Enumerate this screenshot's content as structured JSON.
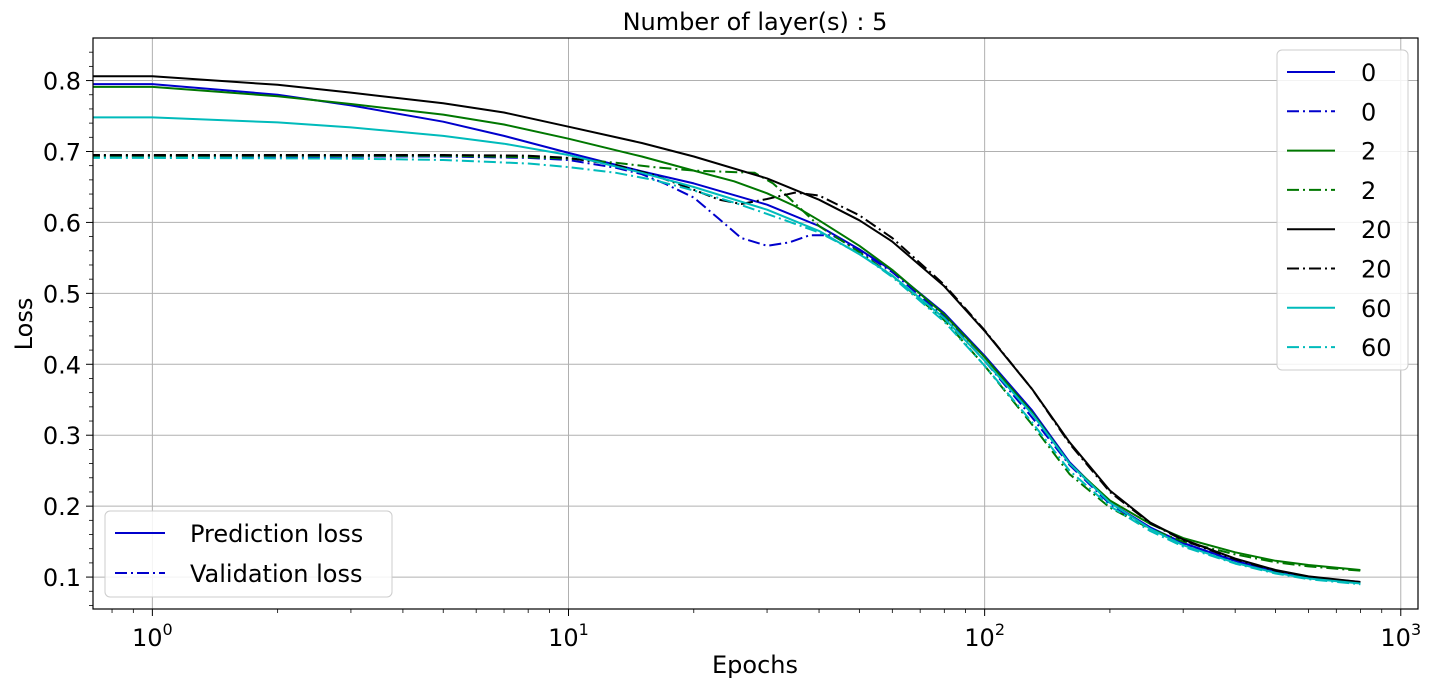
{
  "chart_data": {
    "type": "line",
    "title": "Number of layer(s) : 5",
    "xlabel": "Epochs",
    "ylabel": "Loss",
    "xscale": "log",
    "xlim": [
      0.72,
      1100
    ],
    "ylim": [
      0.055,
      0.86
    ],
    "grid": true,
    "x_ticks": [
      1,
      10,
      100,
      1000
    ],
    "x_tick_labels": [
      {
        "base": "10",
        "exp": "0"
      },
      {
        "base": "10",
        "exp": "1"
      },
      {
        "base": "10",
        "exp": "2"
      },
      {
        "base": "10",
        "exp": "3"
      }
    ],
    "y_ticks": [
      0.1,
      0.2,
      0.3,
      0.4,
      0.5,
      0.6,
      0.7,
      0.8
    ],
    "y_tick_labels": [
      "0.1",
      "0.2",
      "0.3",
      "0.4",
      "0.5",
      "0.6",
      "0.7",
      "0.8"
    ],
    "legend_position": "top-right",
    "style_legend_position": "bottom-left",
    "style_legend": [
      {
        "label": "Prediction loss",
        "dash": "solid",
        "color": "#0000cc"
      },
      {
        "label": "Validation loss",
        "dash": "dashdot",
        "color": "#0000cc"
      }
    ],
    "series": [
      {
        "name": "0",
        "color": "#0000cc",
        "dash": "solid",
        "points": [
          [
            0.7,
            0.795
          ],
          [
            1,
            0.795
          ],
          [
            2,
            0.78
          ],
          [
            3,
            0.765
          ],
          [
            5,
            0.742
          ],
          [
            7,
            0.722
          ],
          [
            10,
            0.698
          ],
          [
            15,
            0.672
          ],
          [
            20,
            0.655
          ],
          [
            30,
            0.625
          ],
          [
            40,
            0.595
          ],
          [
            50,
            0.562
          ],
          [
            60,
            0.532
          ],
          [
            80,
            0.472
          ],
          [
            100,
            0.412
          ],
          [
            130,
            0.335
          ],
          [
            160,
            0.262
          ],
          [
            200,
            0.205
          ],
          [
            250,
            0.17
          ],
          [
            300,
            0.148
          ],
          [
            400,
            0.123
          ],
          [
            500,
            0.108
          ],
          [
            600,
            0.1
          ],
          [
            800,
            0.093
          ]
        ]
      },
      {
        "name": "0",
        "color": "#0000cc",
        "dash": "dashdot",
        "points": [
          [
            0.7,
            0.693
          ],
          [
            1,
            0.693
          ],
          [
            3,
            0.693
          ],
          [
            5,
            0.693
          ],
          [
            8,
            0.691
          ],
          [
            10,
            0.688
          ],
          [
            13,
            0.677
          ],
          [
            15,
            0.668
          ],
          [
            17,
            0.655
          ],
          [
            20,
            0.635
          ],
          [
            23,
            0.605
          ],
          [
            26,
            0.578
          ],
          [
            30,
            0.567
          ],
          [
            34,
            0.572
          ],
          [
            38,
            0.582
          ],
          [
            43,
            0.582
          ],
          [
            50,
            0.56
          ],
          [
            60,
            0.53
          ],
          [
            80,
            0.467
          ],
          [
            100,
            0.405
          ],
          [
            130,
            0.325
          ],
          [
            160,
            0.258
          ],
          [
            200,
            0.203
          ],
          [
            250,
            0.168
          ],
          [
            300,
            0.147
          ],
          [
            400,
            0.122
          ],
          [
            500,
            0.107
          ],
          [
            600,
            0.1
          ],
          [
            800,
            0.092
          ]
        ]
      },
      {
        "name": "2",
        "color": "#007700",
        "dash": "solid",
        "points": [
          [
            0.7,
            0.791
          ],
          [
            1,
            0.791
          ],
          [
            2,
            0.778
          ],
          [
            3,
            0.767
          ],
          [
            5,
            0.752
          ],
          [
            7,
            0.738
          ],
          [
            10,
            0.718
          ],
          [
            15,
            0.693
          ],
          [
            20,
            0.673
          ],
          [
            25,
            0.658
          ],
          [
            30,
            0.641
          ],
          [
            35,
            0.623
          ],
          [
            40,
            0.603
          ],
          [
            50,
            0.567
          ],
          [
            60,
            0.533
          ],
          [
            80,
            0.47
          ],
          [
            100,
            0.41
          ],
          [
            130,
            0.332
          ],
          [
            160,
            0.26
          ],
          [
            200,
            0.208
          ],
          [
            250,
            0.175
          ],
          [
            300,
            0.155
          ],
          [
            400,
            0.135
          ],
          [
            500,
            0.123
          ],
          [
            600,
            0.117
          ],
          [
            800,
            0.11
          ]
        ]
      },
      {
        "name": "2",
        "color": "#007700",
        "dash": "dashdot",
        "points": [
          [
            0.7,
            0.694
          ],
          [
            1,
            0.694
          ],
          [
            3,
            0.694
          ],
          [
            5,
            0.694
          ],
          [
            8,
            0.692
          ],
          [
            10,
            0.69
          ],
          [
            13,
            0.684
          ],
          [
            16,
            0.678
          ],
          [
            20,
            0.673
          ],
          [
            25,
            0.671
          ],
          [
            28,
            0.67
          ],
          [
            31,
            0.655
          ],
          [
            35,
            0.627
          ],
          [
            40,
            0.595
          ],
          [
            50,
            0.558
          ],
          [
            60,
            0.525
          ],
          [
            80,
            0.462
          ],
          [
            100,
            0.398
          ],
          [
            130,
            0.315
          ],
          [
            160,
            0.245
          ],
          [
            200,
            0.198
          ],
          [
            250,
            0.168
          ],
          [
            300,
            0.15
          ],
          [
            400,
            0.132
          ],
          [
            500,
            0.121
          ],
          [
            600,
            0.115
          ],
          [
            800,
            0.109
          ]
        ]
      },
      {
        "name": "20",
        "color": "#000000",
        "dash": "solid",
        "points": [
          [
            0.7,
            0.806
          ],
          [
            1,
            0.806
          ],
          [
            2,
            0.794
          ],
          [
            3,
            0.783
          ],
          [
            5,
            0.768
          ],
          [
            7,
            0.755
          ],
          [
            10,
            0.735
          ],
          [
            15,
            0.712
          ],
          [
            20,
            0.693
          ],
          [
            30,
            0.662
          ],
          [
            40,
            0.632
          ],
          [
            50,
            0.603
          ],
          [
            60,
            0.573
          ],
          [
            80,
            0.51
          ],
          [
            100,
            0.447
          ],
          [
            130,
            0.365
          ],
          [
            160,
            0.29
          ],
          [
            200,
            0.222
          ],
          [
            250,
            0.177
          ],
          [
            300,
            0.153
          ],
          [
            400,
            0.126
          ],
          [
            500,
            0.11
          ],
          [
            600,
            0.101
          ],
          [
            800,
            0.093
          ]
        ]
      },
      {
        "name": "20",
        "color": "#000000",
        "dash": "dashdot",
        "points": [
          [
            0.7,
            0.695
          ],
          [
            1,
            0.695
          ],
          [
            3,
            0.695
          ],
          [
            5,
            0.695
          ],
          [
            8,
            0.694
          ],
          [
            10,
            0.691
          ],
          [
            13,
            0.681
          ],
          [
            16,
            0.667
          ],
          [
            20,
            0.646
          ],
          [
            23,
            0.632
          ],
          [
            26,
            0.626
          ],
          [
            30,
            0.633
          ],
          [
            35,
            0.642
          ],
          [
            40,
            0.638
          ],
          [
            50,
            0.61
          ],
          [
            60,
            0.578
          ],
          [
            80,
            0.512
          ],
          [
            100,
            0.448
          ],
          [
            130,
            0.365
          ],
          [
            160,
            0.288
          ],
          [
            200,
            0.22
          ],
          [
            250,
            0.176
          ],
          [
            300,
            0.152
          ],
          [
            400,
            0.125
          ],
          [
            500,
            0.109
          ],
          [
            600,
            0.1
          ],
          [
            800,
            0.092
          ]
        ]
      },
      {
        "name": "60",
        "color": "#00bbbb",
        "dash": "solid",
        "points": [
          [
            0.7,
            0.748
          ],
          [
            1,
            0.748
          ],
          [
            2,
            0.741
          ],
          [
            3,
            0.734
          ],
          [
            5,
            0.722
          ],
          [
            7,
            0.711
          ],
          [
            10,
            0.695
          ],
          [
            15,
            0.67
          ],
          [
            20,
            0.65
          ],
          [
            30,
            0.618
          ],
          [
            40,
            0.588
          ],
          [
            50,
            0.555
          ],
          [
            60,
            0.525
          ],
          [
            80,
            0.465
          ],
          [
            100,
            0.405
          ],
          [
            130,
            0.33
          ],
          [
            160,
            0.26
          ],
          [
            200,
            0.205
          ],
          [
            250,
            0.168
          ],
          [
            300,
            0.145
          ],
          [
            400,
            0.12
          ],
          [
            500,
            0.106
          ],
          [
            600,
            0.098
          ],
          [
            800,
            0.091
          ]
        ]
      },
      {
        "name": "60",
        "color": "#00bbbb",
        "dash": "dashdot",
        "points": [
          [
            0.7,
            0.691
          ],
          [
            1,
            0.691
          ],
          [
            3,
            0.69
          ],
          [
            5,
            0.688
          ],
          [
            8,
            0.683
          ],
          [
            10,
            0.678
          ],
          [
            13,
            0.67
          ],
          [
            16,
            0.66
          ],
          [
            20,
            0.645
          ],
          [
            25,
            0.628
          ],
          [
            30,
            0.612
          ],
          [
            40,
            0.586
          ],
          [
            50,
            0.556
          ],
          [
            60,
            0.523
          ],
          [
            80,
            0.46
          ],
          [
            100,
            0.398
          ],
          [
            130,
            0.318
          ],
          [
            160,
            0.25
          ],
          [
            200,
            0.2
          ],
          [
            250,
            0.165
          ],
          [
            300,
            0.143
          ],
          [
            400,
            0.119
          ],
          [
            500,
            0.105
          ],
          [
            600,
            0.097
          ],
          [
            800,
            0.09
          ]
        ]
      }
    ]
  }
}
